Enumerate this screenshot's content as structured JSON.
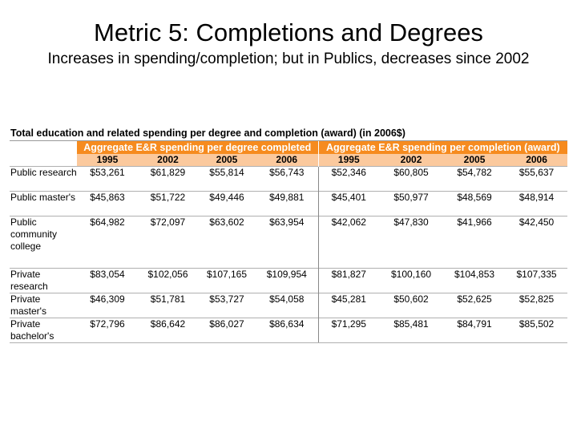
{
  "title": "Metric 5: Completions and Degrees",
  "subtitle": "Increases in spending/completion; but in Publics, decreases since 2002",
  "table": {
    "caption": "Total education and related spending per degree and completion (award) (in 2006$)",
    "group_headers": [
      "Aggregate E&R spending per degree completed",
      "Aggregate E&R spending per completion (award)"
    ],
    "years": [
      "1995",
      "2002",
      "2005",
      "2006",
      "1995",
      "2002",
      "2005",
      "2006"
    ],
    "accent_color": "#f68b1f",
    "subheader_color": "#fbc99d",
    "rows": [
      {
        "label": "Public research",
        "values": [
          "$53,261",
          "$61,829",
          "$55,814",
          "$56,743",
          "$52,346",
          "$60,805",
          "$54,782",
          "$55,637"
        ]
      },
      {
        "label": "Public master's",
        "values": [
          "$45,863",
          "$51,722",
          "$49,446",
          "$49,881",
          "$45,401",
          "$50,977",
          "$48,569",
          "$48,914"
        ]
      },
      {
        "label": "Public community college",
        "values": [
          "$64,982",
          "$72,097",
          "$63,602",
          "$63,954",
          "$42,062",
          "$47,830",
          "$41,966",
          "$42,450"
        ]
      },
      {
        "label": "Private research",
        "values": [
          "$83,054",
          "$102,056",
          "$107,165",
          "$109,954",
          "$81,827",
          "$100,160",
          "$104,853",
          "$107,335"
        ]
      },
      {
        "label": "Private master's",
        "values": [
          "$46,309",
          "$51,781",
          "$53,727",
          "$54,058",
          "$45,281",
          "$50,602",
          "$52,625",
          "$52,825"
        ]
      },
      {
        "label": "Private bachelor's",
        "values": [
          "$72,796",
          "$86,642",
          "$86,027",
          "$86,634",
          "$71,295",
          "$85,481",
          "$84,791",
          "$85,502"
        ]
      }
    ]
  }
}
